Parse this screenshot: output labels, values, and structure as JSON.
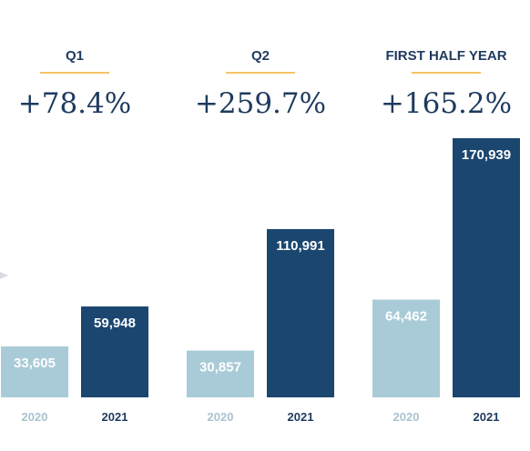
{
  "chart_data": {
    "type": "bar",
    "categories": [
      "2020",
      "2021"
    ],
    "colors": {
      "2020": "#a9cbd8",
      "2021": "#1a4670",
      "accent_line": "#f2b134",
      "title": "#1e3a5f",
      "tick_2020": "#a9c3cf",
      "tick_2021": "#1e3a5f"
    },
    "panels": [
      {
        "title": "Q1",
        "change": "+78.4%",
        "values": [
          33605,
          59948
        ],
        "value_labels": [
          "33,605",
          "59,948"
        ]
      },
      {
        "title": "Q2",
        "change": "+259.7%",
        "values": [
          30857,
          110991
        ],
        "value_labels": [
          "30,857",
          "110,991"
        ]
      },
      {
        "title": "FIRST HALF YEAR",
        "change": "+165.2%",
        "values": [
          64462,
          170939
        ],
        "value_labels": [
          "64,462",
          "170,939"
        ]
      }
    ],
    "ylim": [
      0,
      170939
    ],
    "grid": false,
    "legend": "none"
  }
}
